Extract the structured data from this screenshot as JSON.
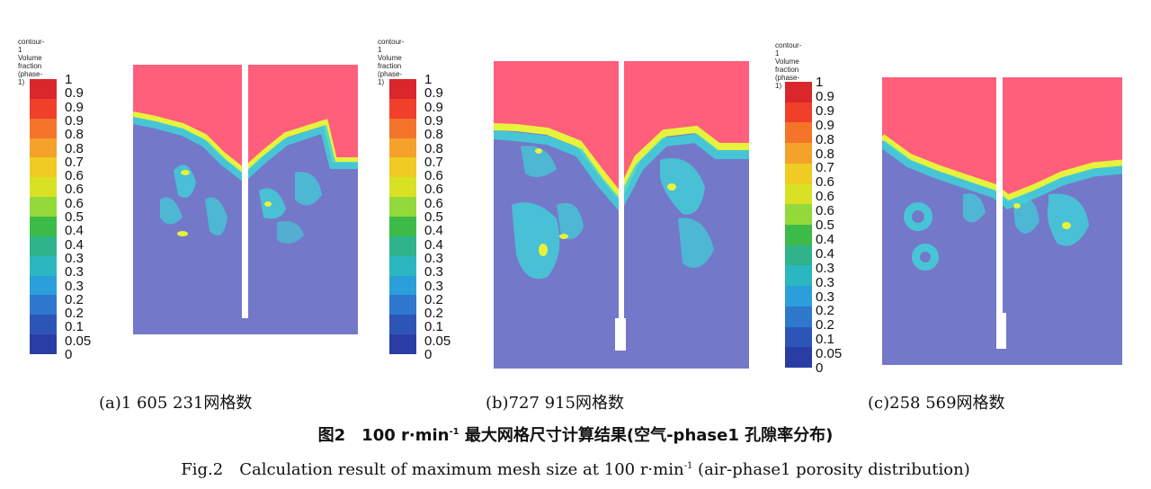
{
  "panels": [
    {
      "header_line1": "contour-1",
      "header_line2": "Volume fraction (phase-1)",
      "ticks": [
        "1",
        "0.9",
        "0.9",
        "0.9",
        "0.8",
        "0.8",
        "0.7",
        "0.6",
        "0.6",
        "0.6",
        "0.5",
        "0.4",
        "0.4",
        "0.3",
        "0.3",
        "0.3",
        "0.2",
        "0.2",
        "0.1",
        "0.05",
        "0"
      ],
      "subcaption": "(a)1 605 231网格数"
    },
    {
      "header_line1": "contour-1",
      "header_line2": "Volume fraction (phase-1)",
      "ticks": [
        "1",
        "0.9",
        "0.9",
        "0.9",
        "0.8",
        "0.8",
        "0.7",
        "0.6",
        "0.6",
        "0.6",
        "0.5",
        "0.4",
        "0.4",
        "0.3",
        "0.3",
        "0.3",
        "0.2",
        "0.2",
        "0.1",
        "0.05",
        "0"
      ],
      "subcaption": "(b)727 915网格数"
    },
    {
      "header_line1": "contour-1",
      "header_line2": "Volume fraction (phase-1)",
      "ticks": [
        "1",
        "0.9",
        "0.9",
        "0.9",
        "0.8",
        "0.8",
        "0.7",
        "0.6",
        "0.6",
        "0.6",
        "0.5",
        "0.4",
        "0.4",
        "0.3",
        "0.3",
        "0.3",
        "0.2",
        "0.2",
        "0.1",
        "0.05",
        "0"
      ],
      "subcaption": "(c)258 569网格数"
    }
  ],
  "caption": {
    "cn_prefix": "图2　100 r·min",
    "cn_sup": "-1",
    "cn_suffix": " 最大网格尺寸计算结果(空气-phase1 孔隙率分布)",
    "en_prefix": "Fig.2　Calculation result of maximum mesh size at 100 r·min",
    "en_sup": "-1",
    "en_suffix": " (air-phase1 porosity distribution)"
  },
  "colors": {
    "air": "#FF5F7A",
    "liquid": "#7478C8",
    "interface_yellow": "#E6F23C",
    "interface_cyan": "#3FD2D8",
    "colormap": [
      "#D9272C",
      "#F0402A",
      "#F4742A",
      "#F4A229",
      "#EFCB23",
      "#D8E124",
      "#94D93A",
      "#3DBB48",
      "#2EB38A",
      "#2BB7C0",
      "#2B9FD9",
      "#2E78CE",
      "#2D55B8",
      "#2A3DA5"
    ]
  }
}
